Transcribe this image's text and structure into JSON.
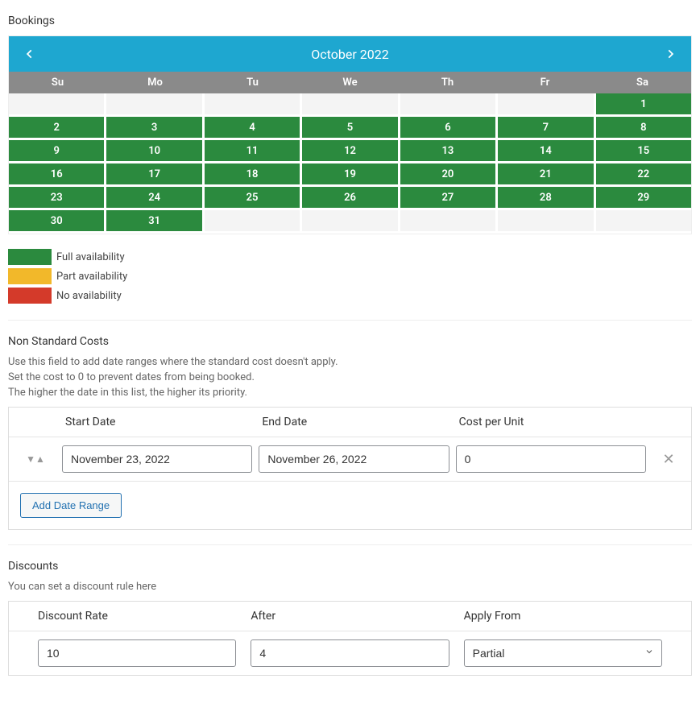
{
  "bookings": {
    "title": "Bookings",
    "calendar": {
      "month_label": "October 2022",
      "header_bg": "#1ea7d0",
      "dow_bg": "#8a8a8a",
      "day_headers": [
        "Su",
        "Mo",
        "Tu",
        "We",
        "Th",
        "Fr",
        "Sa"
      ],
      "leading_blanks": 6,
      "days": [
        {
          "n": "1",
          "status": "full"
        },
        {
          "n": "2",
          "status": "full"
        },
        {
          "n": "3",
          "status": "full"
        },
        {
          "n": "4",
          "status": "full"
        },
        {
          "n": "5",
          "status": "full"
        },
        {
          "n": "6",
          "status": "full"
        },
        {
          "n": "7",
          "status": "full"
        },
        {
          "n": "8",
          "status": "full"
        },
        {
          "n": "9",
          "status": "full"
        },
        {
          "n": "10",
          "status": "full"
        },
        {
          "n": "11",
          "status": "full"
        },
        {
          "n": "12",
          "status": "full"
        },
        {
          "n": "13",
          "status": "full"
        },
        {
          "n": "14",
          "status": "full"
        },
        {
          "n": "15",
          "status": "full"
        },
        {
          "n": "16",
          "status": "full"
        },
        {
          "n": "17",
          "status": "full"
        },
        {
          "n": "18",
          "status": "full"
        },
        {
          "n": "19",
          "status": "full"
        },
        {
          "n": "20",
          "status": "full"
        },
        {
          "n": "21",
          "status": "full"
        },
        {
          "n": "22",
          "status": "full"
        },
        {
          "n": "23",
          "status": "full"
        },
        {
          "n": "24",
          "status": "full"
        },
        {
          "n": "25",
          "status": "full"
        },
        {
          "n": "26",
          "status": "full"
        },
        {
          "n": "27",
          "status": "full"
        },
        {
          "n": "28",
          "status": "full"
        },
        {
          "n": "29",
          "status": "full"
        },
        {
          "n": "30",
          "status": "full"
        },
        {
          "n": "31",
          "status": "full"
        }
      ],
      "trailing_blanks": 5,
      "colors": {
        "full": "#2b8a3e",
        "part": "#f2b82a",
        "none": "#d43a2a",
        "blank": "#f4f4f4"
      }
    },
    "legend": {
      "full": "Full availability",
      "part": "Part availability",
      "none": "No availability"
    }
  },
  "nsc": {
    "title": "Non Standard Costs",
    "help1": "Use this field to add date ranges where the standard cost doesn't apply.",
    "help2": "Set the cost to 0 to prevent dates from being booked.",
    "help3": "The higher the date in this list, the higher its priority.",
    "columns": {
      "start": "Start Date",
      "end": "End Date",
      "cost": "Cost per Unit"
    },
    "rows": [
      {
        "start": "November 23, 2022",
        "end": "November 26, 2022",
        "cost": "0"
      }
    ],
    "add_button": "Add Date Range"
  },
  "discounts": {
    "title": "Discounts",
    "help": "You can set a discount rule here",
    "columns": {
      "rate": "Discount Rate",
      "after": "After",
      "apply": "Apply From"
    },
    "row": {
      "rate": "10",
      "after": "4",
      "apply": "Partial"
    }
  }
}
